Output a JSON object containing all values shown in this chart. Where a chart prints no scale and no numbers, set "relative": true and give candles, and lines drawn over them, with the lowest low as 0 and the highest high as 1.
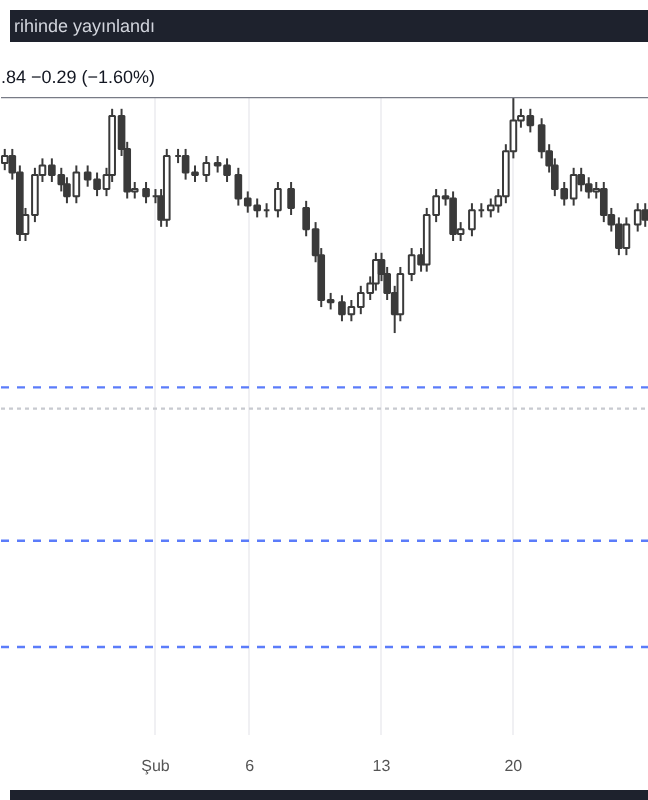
{
  "chart_data": {
    "type": "candlestick",
    "title": "rihinde yayınlandı",
    "subtitle": ".84  −0.29 (−1.60%)",
    "relative": true,
    "color": "#3a3a3a",
    "grid": "x",
    "xlim": [
      -7.2,
      27.2
    ],
    "xticks": [
      {
        "value": 1,
        "label": "Şub"
      },
      6,
      13,
      20
    ],
    "x": [
      -7.0,
      -6.6,
      -6.2,
      -5.9,
      -5.4,
      -5.0,
      -4.5,
      -4.0,
      -3.7,
      -3.2,
      -2.6,
      -2.1,
      -1.6,
      -1.3,
      -0.8,
      -0.5,
      -0.1,
      0.5,
      1.0,
      1.3,
      1.6,
      2.2,
      2.6,
      3.1,
      3.7,
      4.3,
      4.8,
      5.4,
      5.9,
      6.4,
      6.9,
      7.5,
      8.2,
      9.0,
      9.5,
      9.8,
      10.3,
      10.9,
      11.4,
      11.9,
      12.4,
      12.7,
      13.0,
      13.3,
      13.7,
      14.0,
      14.6,
      15.1,
      15.4,
      15.9,
      16.4,
      16.8,
      17.2,
      17.8,
      18.3,
      18.8,
      19.2,
      19.6,
      20.0,
      20.4,
      20.9,
      21.5,
      21.9,
      22.2,
      22.7,
      23.2,
      23.6,
      24.0,
      24.4,
      24.8,
      25.2,
      25.6,
      26.0,
      26.6,
      27.0
    ],
    "ohlc": [
      [
        0.72,
        0.78,
        0.69,
        0.75
      ],
      [
        0.75,
        0.78,
        0.65,
        0.68
      ],
      [
        0.68,
        0.71,
        0.39,
        0.42
      ],
      [
        0.42,
        0.53,
        0.39,
        0.5
      ],
      [
        0.5,
        0.7,
        0.47,
        0.67
      ],
      [
        0.67,
        0.74,
        0.64,
        0.71
      ],
      [
        0.71,
        0.74,
        0.64,
        0.67
      ],
      [
        0.67,
        0.7,
        0.6,
        0.63
      ],
      [
        0.63,
        0.66,
        0.55,
        0.58
      ],
      [
        0.58,
        0.71,
        0.55,
        0.68
      ],
      [
        0.68,
        0.71,
        0.62,
        0.65
      ],
      [
        0.65,
        0.68,
        0.58,
        0.61
      ],
      [
        0.61,
        0.7,
        0.58,
        0.67
      ],
      [
        0.67,
        0.95,
        0.64,
        0.92
      ],
      [
        0.92,
        0.95,
        0.75,
        0.78
      ],
      [
        0.78,
        0.81,
        0.57,
        0.6
      ],
      [
        0.6,
        0.64,
        0.57,
        0.61
      ],
      [
        0.61,
        0.64,
        0.55,
        0.58
      ],
      [
        0.58,
        0.61,
        0.55,
        0.58
      ],
      [
        0.58,
        0.61,
        0.45,
        0.48
      ],
      [
        0.48,
        0.78,
        0.45,
        0.75
      ],
      [
        0.75,
        0.78,
        0.72,
        0.75
      ],
      [
        0.75,
        0.78,
        0.65,
        0.68
      ],
      [
        0.68,
        0.71,
        0.64,
        0.67
      ],
      [
        0.67,
        0.75,
        0.64,
        0.72
      ],
      [
        0.72,
        0.75,
        0.68,
        0.71
      ],
      [
        0.71,
        0.74,
        0.64,
        0.67
      ],
      [
        0.67,
        0.7,
        0.54,
        0.57
      ],
      [
        0.57,
        0.6,
        0.51,
        0.54
      ],
      [
        0.54,
        0.57,
        0.49,
        0.52
      ],
      [
        0.52,
        0.55,
        0.49,
        0.52
      ],
      [
        0.52,
        0.64,
        0.49,
        0.61
      ],
      [
        0.61,
        0.64,
        0.5,
        0.53
      ],
      [
        0.53,
        0.56,
        0.41,
        0.44
      ],
      [
        0.44,
        0.47,
        0.3,
        0.33
      ],
      [
        0.33,
        0.36,
        0.11,
        0.14
      ],
      [
        0.14,
        0.17,
        0.1,
        0.13
      ],
      [
        0.13,
        0.16,
        0.05,
        0.08
      ],
      [
        0.08,
        0.14,
        0.05,
        0.11
      ],
      [
        0.11,
        0.2,
        0.08,
        0.17
      ],
      [
        0.17,
        0.24,
        0.14,
        0.21
      ],
      [
        0.21,
        0.34,
        0.18,
        0.31
      ],
      [
        0.31,
        0.34,
        0.22,
        0.25
      ],
      [
        0.25,
        0.28,
        0.14,
        0.17
      ],
      [
        0.17,
        0.2,
        0.0,
        0.08
      ],
      [
        0.08,
        0.28,
        0.05,
        0.25
      ],
      [
        0.25,
        0.36,
        0.22,
        0.33
      ],
      [
        0.33,
        0.36,
        0.26,
        0.29
      ],
      [
        0.29,
        0.53,
        0.26,
        0.5
      ],
      [
        0.5,
        0.61,
        0.47,
        0.58
      ],
      [
        0.58,
        0.61,
        0.54,
        0.57
      ],
      [
        0.57,
        0.6,
        0.39,
        0.42
      ],
      [
        0.42,
        0.47,
        0.39,
        0.44
      ],
      [
        0.44,
        0.55,
        0.41,
        0.52
      ],
      [
        0.52,
        0.55,
        0.49,
        0.52
      ],
      [
        0.52,
        0.57,
        0.49,
        0.54
      ],
      [
        0.54,
        0.61,
        0.51,
        0.58
      ],
      [
        0.58,
        0.8,
        0.55,
        0.77
      ],
      [
        0.77,
        1.0,
        0.74,
        0.9
      ],
      [
        0.9,
        0.95,
        0.87,
        0.92
      ],
      [
        0.92,
        0.95,
        0.85,
        0.88
      ],
      [
        0.88,
        0.91,
        0.74,
        0.77
      ],
      [
        0.77,
        0.8,
        0.68,
        0.71
      ],
      [
        0.71,
        0.74,
        0.58,
        0.61
      ],
      [
        0.61,
        0.64,
        0.54,
        0.57
      ],
      [
        0.57,
        0.7,
        0.54,
        0.67
      ],
      [
        0.67,
        0.7,
        0.6,
        0.63
      ],
      [
        0.63,
        0.66,
        0.57,
        0.6
      ],
      [
        0.6,
        0.64,
        0.57,
        0.61
      ],
      [
        0.61,
        0.64,
        0.47,
        0.5
      ],
      [
        0.5,
        0.53,
        0.43,
        0.46
      ],
      [
        0.46,
        0.49,
        0.33,
        0.36
      ],
      [
        0.36,
        0.49,
        0.33,
        0.46
      ],
      [
        0.46,
        0.55,
        0.43,
        0.52
      ],
      [
        0.52,
        0.55,
        0.45,
        0.48
      ]
    ],
    "ref_lines": [
      {
        "axis": "y",
        "value": 1.0,
        "color": "#787b86",
        "line_style": "solid"
      },
      {
        "axis": "y",
        "value": -0.23,
        "color": "#5b7cfa",
        "line_style": "dashed"
      },
      {
        "axis": "y",
        "value": -0.32,
        "color": "#c8cad0",
        "line_style": "dotted"
      },
      {
        "axis": "y",
        "value": -0.88,
        "color": "#5b7cfa",
        "line_style": "dashed"
      },
      {
        "axis": "y",
        "value": -1.33,
        "color": "#5b7cfa",
        "line_style": "dashed"
      }
    ]
  }
}
